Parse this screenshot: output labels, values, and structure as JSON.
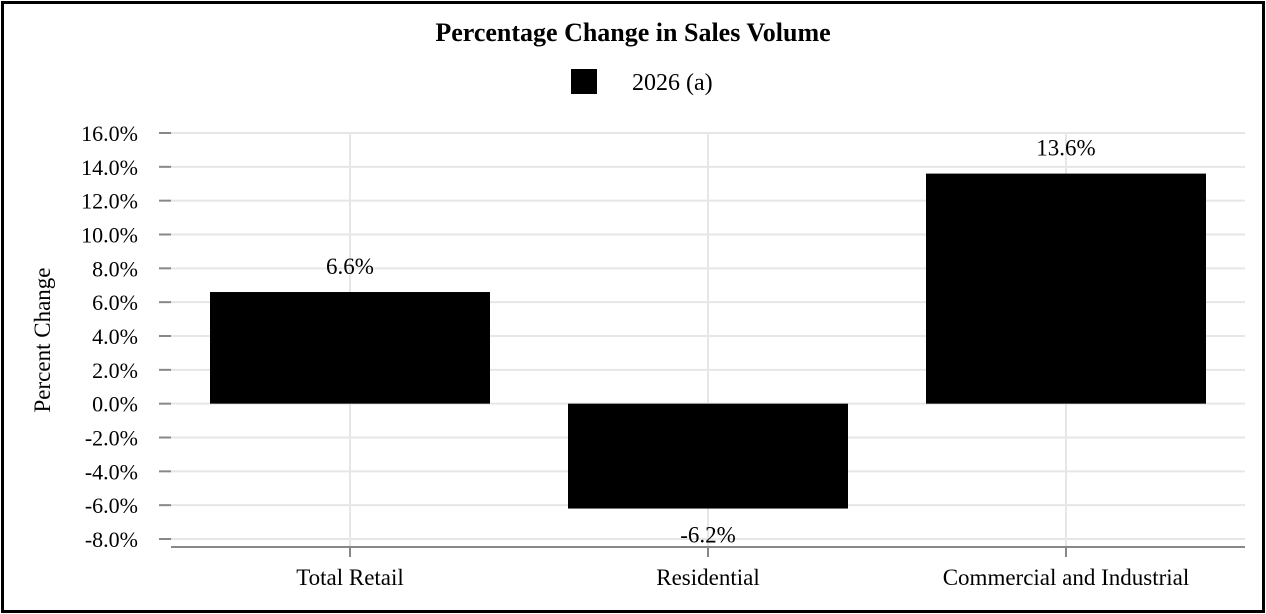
{
  "chart_data": {
    "type": "bar",
    "title": "Percentage Change in Sales Volume",
    "ylabel": "Percent Change",
    "xlabel": "",
    "categories": [
      "Total Retail",
      "Residential",
      "Commercial and Industrial"
    ],
    "series": [
      {
        "name": "2026 (a)",
        "values": [
          6.6,
          -6.2,
          13.6
        ],
        "labels": [
          "6.6%",
          "-6.2%",
          "13.6%"
        ],
        "color": "#000000"
      }
    ],
    "ylim": [
      -8,
      16
    ],
    "yticks": [
      16,
      14,
      12,
      10,
      8,
      6,
      4,
      2,
      0,
      -2,
      -4,
      -6,
      -8
    ],
    "ytick_labels": [
      "16.0%",
      "14.0%",
      "12.0%",
      "10.0%",
      "8.0%",
      "6.0%",
      "4.0%",
      "2.0%",
      "0.0%",
      "-2.0%",
      "-4.0%",
      "-6.0%",
      "-8.0%"
    ],
    "grid": true,
    "legend_position": "top-center"
  },
  "colors": {
    "bar": "#000000",
    "grid": "#e6e6e6",
    "axis": "#888888",
    "border": "#000000"
  }
}
